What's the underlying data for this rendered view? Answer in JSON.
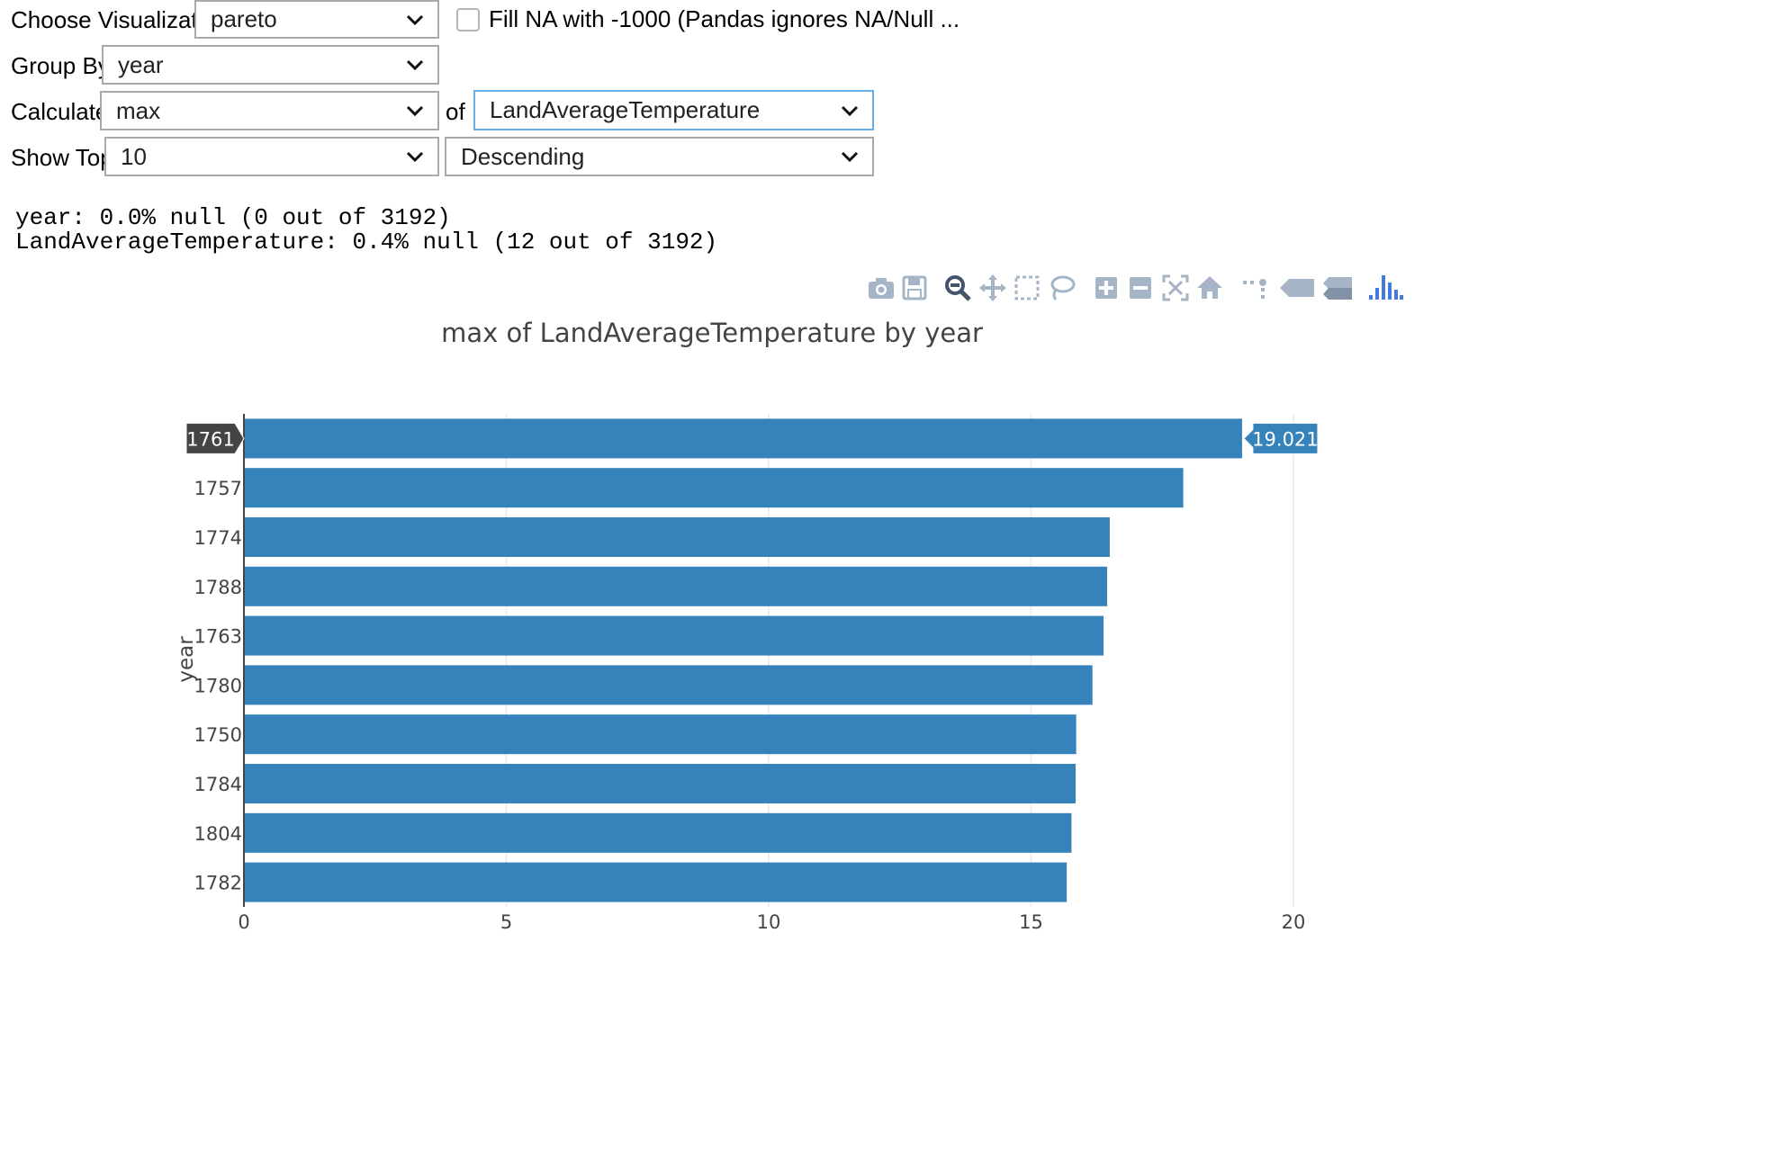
{
  "controls": {
    "viz_label": "Choose Visualization",
    "viz_value": "pareto",
    "fillna_label": "Fill NA with -1000 (Pandas ignores NA/Null ...",
    "fillna_checked": false,
    "groupby_label": "Group By",
    "groupby_value": "year",
    "calc_label": "Calculate",
    "calc_value": "max",
    "of_label": "of",
    "of_value": "LandAverageTemperature",
    "showtop_label": "Show Top",
    "showtop_value": "10",
    "order_value": "Descending"
  },
  "null_info": [
    "year: 0.0% null (0 out of 3192)",
    "LandAverageTemperature: 0.4% null (12 out of 3192)"
  ],
  "toolbar": {
    "icons": [
      "camera-icon",
      "save-icon",
      "zoom-icon",
      "pan-icon",
      "box-select-icon",
      "lasso-select-icon",
      "zoom-in-icon",
      "zoom-out-icon",
      "autoscale-icon",
      "reset-axes-icon",
      "toggle-spike-lines-icon",
      "show-closest-icon",
      "compare-data-icon",
      "plotly-logo-icon"
    ]
  },
  "chart_data": {
    "type": "bar",
    "orientation": "horizontal",
    "title": "max of LandAverageTemperature by year",
    "ylabel": "year",
    "xlabel": "",
    "categories": [
      "1761",
      "1757",
      "1774",
      "1788",
      "1763",
      "1780",
      "1750",
      "1784",
      "1804",
      "1782"
    ],
    "values": [
      19.021,
      17.9,
      16.5,
      16.45,
      16.38,
      16.17,
      15.86,
      15.85,
      15.77,
      15.68
    ],
    "xlim": [
      0,
      20
    ],
    "xticks": [
      0,
      5,
      10,
      15,
      20
    ],
    "grid": true,
    "bar_color": "#3683bb",
    "hover": {
      "category": "1761",
      "value_label": "19.021"
    }
  }
}
